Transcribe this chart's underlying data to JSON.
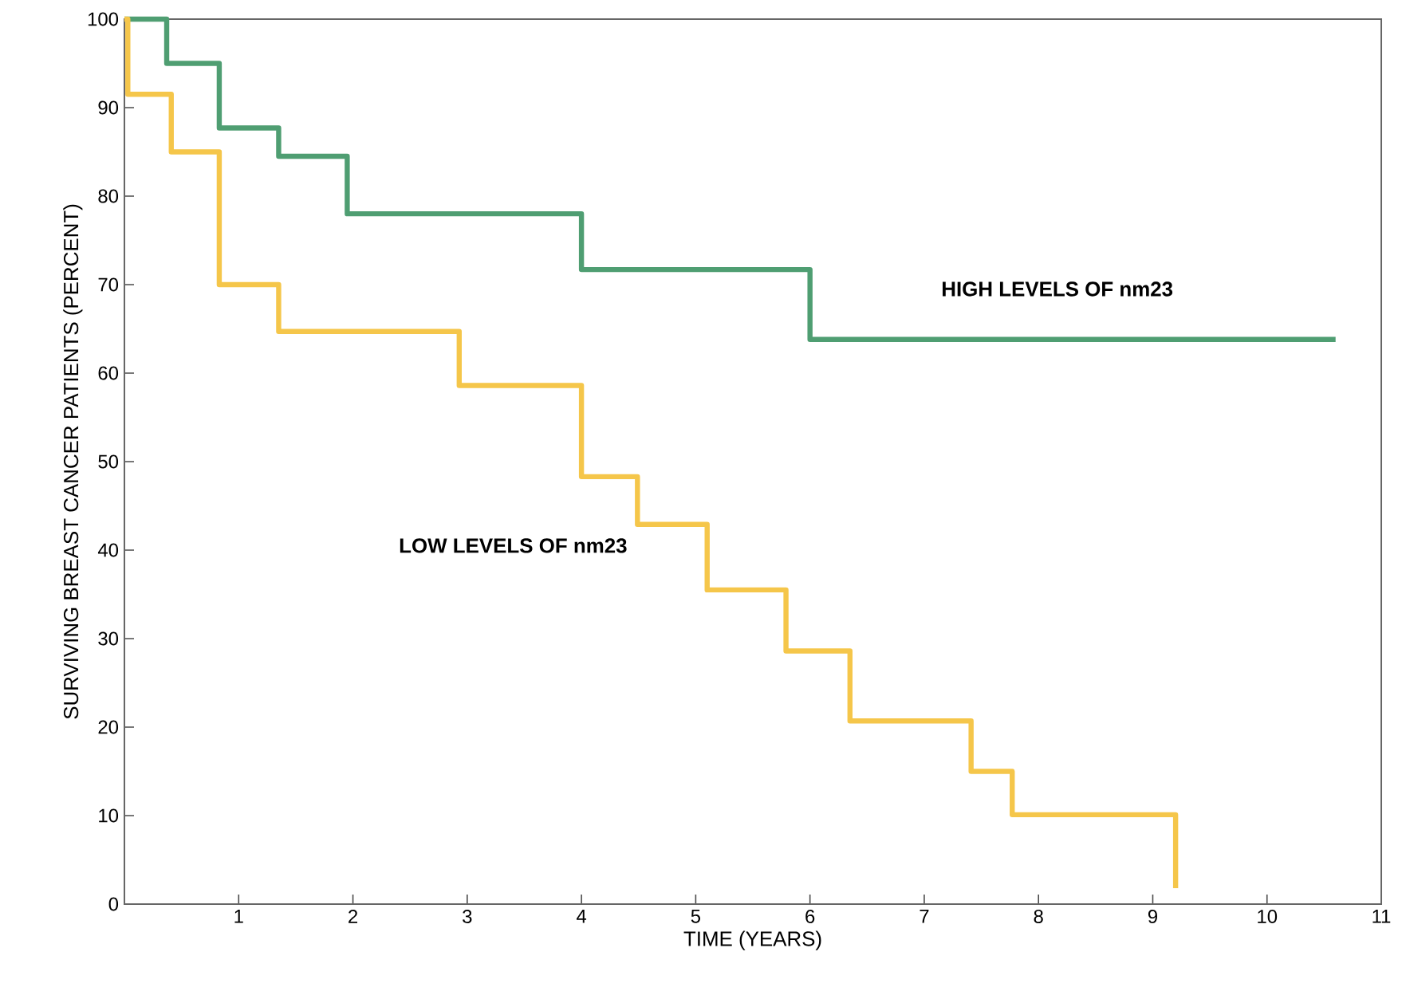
{
  "chart_data": {
    "type": "step",
    "xlabel": "TIME (YEARS)",
    "ylabel": "SURVIVING BREAST CANCER PATIENTS (PERCENT)",
    "xlim": [
      0,
      11
    ],
    "xticks": [
      1,
      2,
      3,
      4,
      5,
      6,
      7,
      8,
      9,
      10,
      11
    ],
    "ylim": [
      0,
      100
    ],
    "yticks": [
      0,
      10,
      20,
      30,
      40,
      50,
      60,
      70,
      80,
      90,
      100
    ],
    "grid": false,
    "legend": false,
    "series": [
      {
        "name": "HIGH LEVELS OF nm23",
        "color": "#4f9e72",
        "x": [
          0,
          0.37,
          0.83,
          1.35,
          1.95,
          4.0,
          6.0,
          10.6
        ],
        "values": [
          100,
          95,
          87.7,
          84.5,
          78,
          71.7,
          63.8,
          63.8
        ]
      },
      {
        "name": "LOW LEVELS OF nm23",
        "color": "#f5c64a",
        "x": [
          0,
          0.03,
          0.41,
          0.83,
          1.35,
          2.93,
          4.0,
          4.49,
          5.1,
          5.79,
          6.35,
          7.41,
          7.77,
          9.2
        ],
        "values": [
          100,
          91.5,
          85,
          70,
          64.7,
          58.6,
          48.3,
          42.9,
          35.5,
          28.6,
          20.7,
          15.0,
          10.1,
          1.8
        ]
      }
    ]
  }
}
